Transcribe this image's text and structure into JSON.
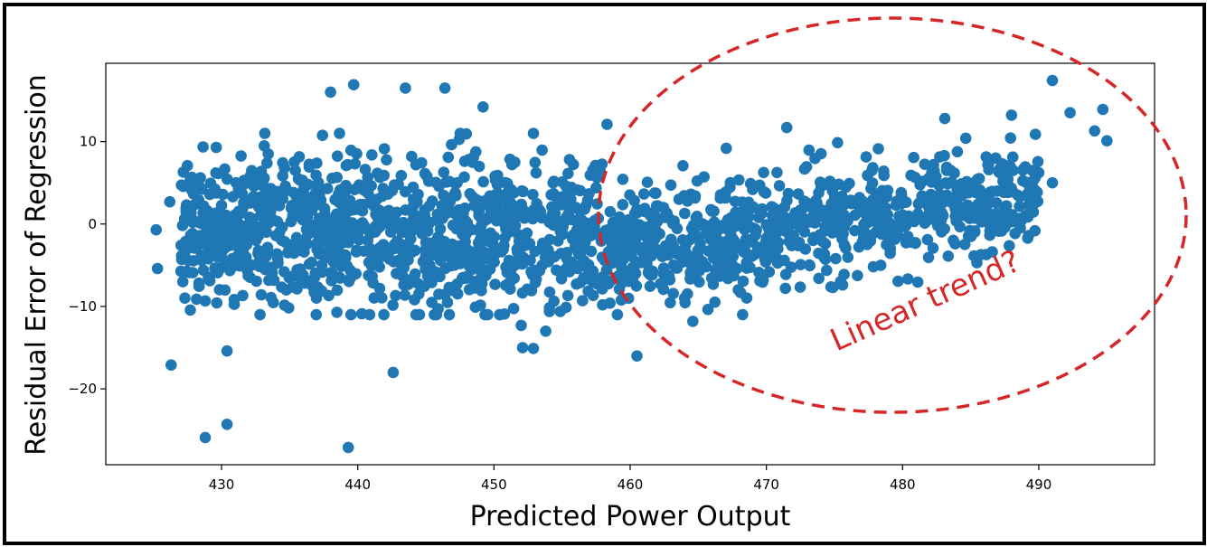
{
  "chart_data": {
    "type": "scatter",
    "xlabel": "Predicted Power Output",
    "ylabel": "Residual Error of Regression",
    "xlim": [
      421.5,
      498.5
    ],
    "ylim": [
      -29.2,
      19.5
    ],
    "xticks": [
      430,
      440,
      450,
      460,
      470,
      480,
      490
    ],
    "yticks": [
      10,
      0,
      -10,
      -20
    ],
    "xtick_labels": [
      "430",
      "440",
      "450",
      "460",
      "470",
      "480",
      "490"
    ],
    "ytick_labels": [
      "10",
      "0",
      "−10",
      "−20"
    ],
    "grid": false,
    "marker_color": "#1f77b4",
    "annotation": {
      "text": "Linear trend?",
      "color": "#d62728",
      "shape": "dashed-ellipse"
    },
    "notable_points": [
      {
        "x": 426.3,
        "y": -17.1
      },
      {
        "x": 428.8,
        "y": -25.9
      },
      {
        "x": 430.4,
        "y": -15.4
      },
      {
        "x": 430.4,
        "y": -24.3
      },
      {
        "x": 439.3,
        "y": -27.1
      },
      {
        "x": 442.6,
        "y": -18.0
      },
      {
        "x": 439.7,
        "y": 16.9
      },
      {
        "x": 438.0,
        "y": 16.0
      },
      {
        "x": 443.5,
        "y": 16.5
      },
      {
        "x": 446.4,
        "y": 16.5
      },
      {
        "x": 449.2,
        "y": 14.2
      },
      {
        "x": 452.0,
        "y": -12.3
      },
      {
        "x": 452.1,
        "y": -15.0
      },
      {
        "x": 452.9,
        "y": -15.1
      },
      {
        "x": 453.8,
        "y": -13.0
      },
      {
        "x": 460.5,
        "y": -16.0
      },
      {
        "x": 458.3,
        "y": 12.1
      },
      {
        "x": 471.5,
        "y": 11.7
      },
      {
        "x": 483.1,
        "y": 12.8
      },
      {
        "x": 488.0,
        "y": 13.2
      },
      {
        "x": 491.0,
        "y": 17.4
      },
      {
        "x": 492.3,
        "y": 13.5
      },
      {
        "x": 494.7,
        "y": 13.9
      },
      {
        "x": 495.0,
        "y": 10.1
      },
      {
        "x": 494.1,
        "y": 11.3
      },
      {
        "x": 491.0,
        "y": 5.0
      },
      {
        "x": 489.0,
        "y": 1.0
      },
      {
        "x": 475.6,
        "y": -7.4
      },
      {
        "x": 478.4,
        "y": -5.0
      },
      {
        "x": 468.1,
        "y": -8.3
      },
      {
        "x": 471.4,
        "y": -7.8
      },
      {
        "x": 464.6,
        "y": -11.8
      },
      {
        "x": 426.2,
        "y": 2.7
      },
      {
        "x": 425.2,
        "y": -0.7
      },
      {
        "x": 425.3,
        "y": -5.4
      }
    ]
  }
}
